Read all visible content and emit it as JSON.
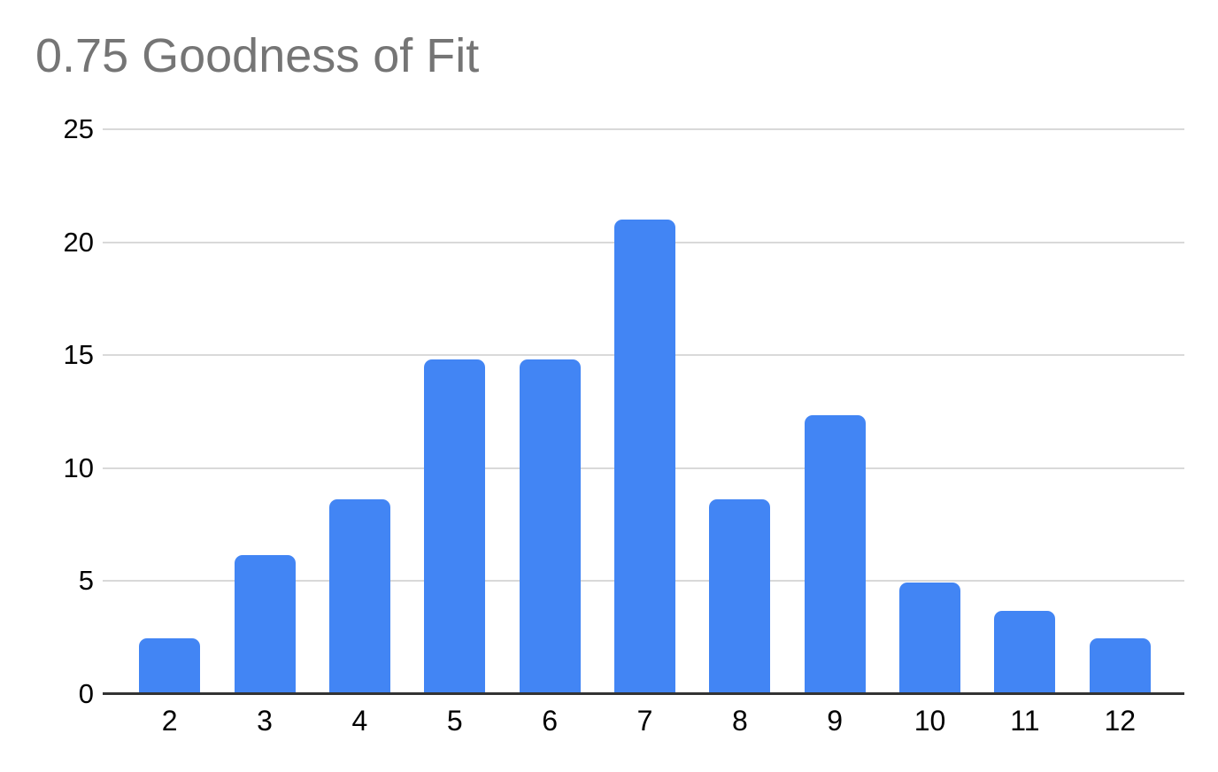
{
  "title": "0.75 Goodness of Fit",
  "colors": {
    "bar": "#4285f4",
    "title": "#757575",
    "gridline": "#d9d9d9",
    "axis_line": "#333333",
    "tick_label": "#000000",
    "background": "#ffffff"
  },
  "chart_data": {
    "type": "bar",
    "title": "0.75 Goodness of Fit",
    "categories": [
      "2",
      "3",
      "4",
      "5",
      "6",
      "7",
      "8",
      "9",
      "10",
      "11",
      "12"
    ],
    "values": [
      2.47,
      6.17,
      8.64,
      14.81,
      14.81,
      20.99,
      8.64,
      12.35,
      4.94,
      3.7,
      2.47
    ],
    "xlabel": "",
    "ylabel": "",
    "ylim": [
      0,
      25
    ],
    "yticks": [
      0,
      5,
      10,
      15,
      20,
      25
    ],
    "grid": true,
    "legend": "none",
    "bar_corner": "rounded-top"
  }
}
